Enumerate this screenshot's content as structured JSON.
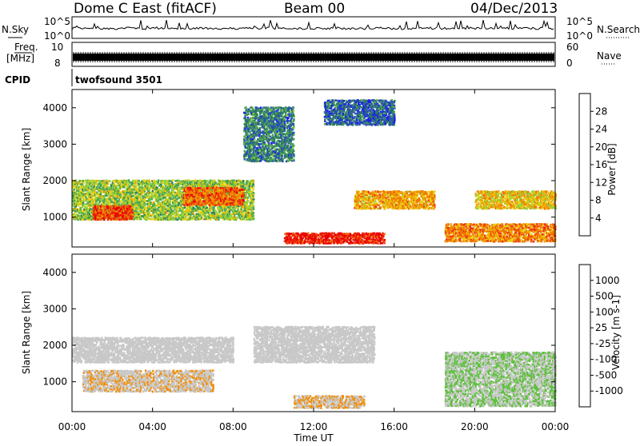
{
  "header": {
    "station": "Dome C East (fitACF)",
    "beam": "Beam 00",
    "date": "04/Dec/2013"
  },
  "strips": {
    "nsky_label": "N.Sky",
    "nsky_ticks": [
      "10^5",
      "10^0"
    ],
    "nsearch_label": "N.Search",
    "nsearch_ticks": [
      "10^5",
      "10^0"
    ],
    "freq_label_1": "Freq.",
    "freq_label_2": "[MHz]",
    "freq_ticks": [
      "8",
      "10"
    ],
    "nave_label": "Nave",
    "nave_ticks": [
      "60",
      "0"
    ],
    "cpid_label": "CPID",
    "cpid_value": "twofsound 3501"
  },
  "chart_data": [
    {
      "type": "heatmap",
      "name": "power-panel",
      "ylabel": "Slant Range [km]",
      "yticks": [
        1000,
        2000,
        3000,
        4000
      ],
      "ylim": [
        180,
        4500
      ],
      "xticks": [
        "00:00",
        "04:00",
        "08:00",
        "12:00",
        "16:00",
        "20:00",
        "00:00"
      ],
      "xlim_hours": [
        0,
        24
      ],
      "colorbar": {
        "label": "Power [dB]",
        "ticks": [
          "4",
          "8",
          "12",
          "16",
          "20",
          "24",
          "28"
        ],
        "colors": [
          "#1c1cf0",
          "#2a52b4",
          "#2e7d5a",
          "#4aa550",
          "#8fd040",
          "#e8d010",
          "#f0a000",
          "#f07000",
          "#ee3010",
          "#e80000"
        ]
      },
      "regions_approx": [
        {
          "t0": 0.0,
          "t1": 9.0,
          "r0": 900,
          "r1": 2000,
          "level_db": 14
        },
        {
          "t0": 5.5,
          "t1": 8.5,
          "r0": 1300,
          "r1": 1800,
          "level_db": 24
        },
        {
          "t0": 1.0,
          "t1": 3.0,
          "r0": 900,
          "r1": 1300,
          "level_db": 26
        },
        {
          "t0": 10.5,
          "t1": 15.5,
          "r0": 250,
          "r1": 550,
          "level_db": 28
        },
        {
          "t0": 14.0,
          "t1": 18.0,
          "r0": 1200,
          "r1": 1700,
          "level_db": 20
        },
        {
          "t0": 18.5,
          "t1": 24.0,
          "r0": 300,
          "r1": 800,
          "level_db": 22
        },
        {
          "t0": 8.5,
          "t1": 11.0,
          "r0": 2500,
          "r1": 4000,
          "level_db": 8
        },
        {
          "t0": 12.5,
          "t1": 16.0,
          "r0": 3500,
          "r1": 4200,
          "level_db": 6
        },
        {
          "t0": 20.0,
          "t1": 24.0,
          "r0": 1200,
          "r1": 1700,
          "level_db": 18
        }
      ]
    },
    {
      "type": "heatmap",
      "name": "velocity-panel",
      "ylabel": "Slant Range [km]",
      "yticks": [
        1000,
        2000,
        3000,
        4000
      ],
      "ylim": [
        180,
        4500
      ],
      "xticks": [
        "00:00",
        "04:00",
        "08:00",
        "12:00",
        "16:00",
        "20:00",
        "00:00"
      ],
      "xlabel": "Time UT",
      "xlim_hours": [
        0,
        24
      ],
      "colorbar": {
        "label": "Velocity [m s-1]",
        "ticks": [
          "1000",
          "500",
          "100",
          "25",
          "-25",
          "-100",
          "-500",
          "-1000"
        ],
        "colors": [
          "#2040c0",
          "#2e6a90",
          "#3a8a6a",
          "#60c040",
          "#c8c8c8",
          "#c8c8c8",
          "#f09010",
          "#f07000",
          "#ee3010",
          "#e00000"
        ]
      },
      "regions_approx": [
        {
          "t0": 0.0,
          "t1": 8.0,
          "r0": 1500,
          "r1": 2200,
          "level_ms": 0
        },
        {
          "t0": 0.5,
          "t1": 7.0,
          "r0": 700,
          "r1": 1300,
          "level_ms": -150
        },
        {
          "t0": 11.0,
          "t1": 14.5,
          "r0": 250,
          "r1": 600,
          "level_ms": -200
        },
        {
          "t0": 18.5,
          "t1": 24.0,
          "r0": 300,
          "r1": 1800,
          "level_ms": 200
        },
        {
          "t0": 9.0,
          "t1": 15.0,
          "r0": 1500,
          "r1": 2500,
          "level_ms": 0
        }
      ]
    }
  ]
}
